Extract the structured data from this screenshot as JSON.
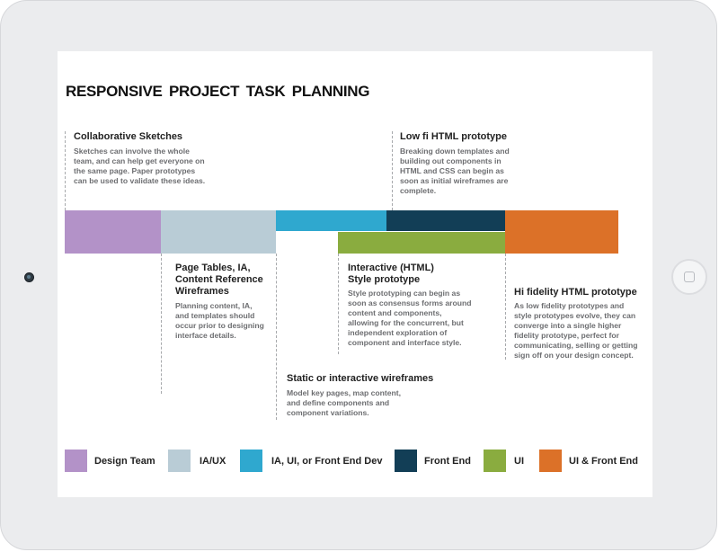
{
  "title": "RESPONSIVE  PROJECT  TASK  PLANNING",
  "colors": {
    "design_team": "#b392c8",
    "ia_ux": "#b9ccd6",
    "ia_ui_fed": "#2fa8cf",
    "front_end": "#123e56",
    "ui": "#8aac3f",
    "ui_front_end": "#dc7128"
  },
  "phases": {
    "collaborative_sketches": {
      "title": "Collaborative Sketches",
      "desc": [
        "Sketches can involve the whole",
        "team, and can help get everyone on",
        "the same page. Paper prototypes",
        "can be used to validate these ideas."
      ]
    },
    "low_fi_html": {
      "title": "Low fi HTML prototype",
      "desc": [
        "Breaking down templates and",
        "building out components in",
        "HTML and CSS can begin as",
        "soon as initial wireframes are",
        "complete."
      ]
    },
    "page_tables": {
      "title": [
        "Page Tables, IA,",
        "Content Reference",
        "Wireframes"
      ],
      "desc": [
        "Planning content, IA,",
        "and templates should",
        "occur prior to designing",
        "interface details."
      ]
    },
    "interactive_html": {
      "title": [
        "Interactive (HTML)",
        "Style prototype"
      ],
      "desc": [
        "Style prototyping can begin as",
        "soon as consensus forms around",
        "content and components,",
        "allowing for the concurrent, but",
        "independent exploration of",
        "component and interface style."
      ]
    },
    "hi_fi_html": {
      "title": "Hi fidelity HTML prototype",
      "desc": [
        "As low fidelity prototypes and",
        "style prototypes evolve, they can",
        "converge into a single higher",
        "fidelity prototype, perfect for",
        "communicating, selling or getting",
        "sign off on your design concept."
      ]
    },
    "static_wireframes": {
      "title": "Static or interactive wireframes",
      "desc": [
        "Model key pages, map content,",
        "and define components and",
        "component variations."
      ]
    }
  },
  "legend": [
    {
      "label": "Design Team",
      "color": "#b392c8"
    },
    {
      "label": "IA/UX",
      "color": "#b9ccd6"
    },
    {
      "label": "IA, UI, or Front End Dev",
      "color": "#2fa8cf"
    },
    {
      "label": "Front End",
      "color": "#123e56"
    },
    {
      "label": "UI",
      "color": "#8aac3f"
    },
    {
      "label": "UI & Front End",
      "color": "#dc7128"
    }
  ]
}
